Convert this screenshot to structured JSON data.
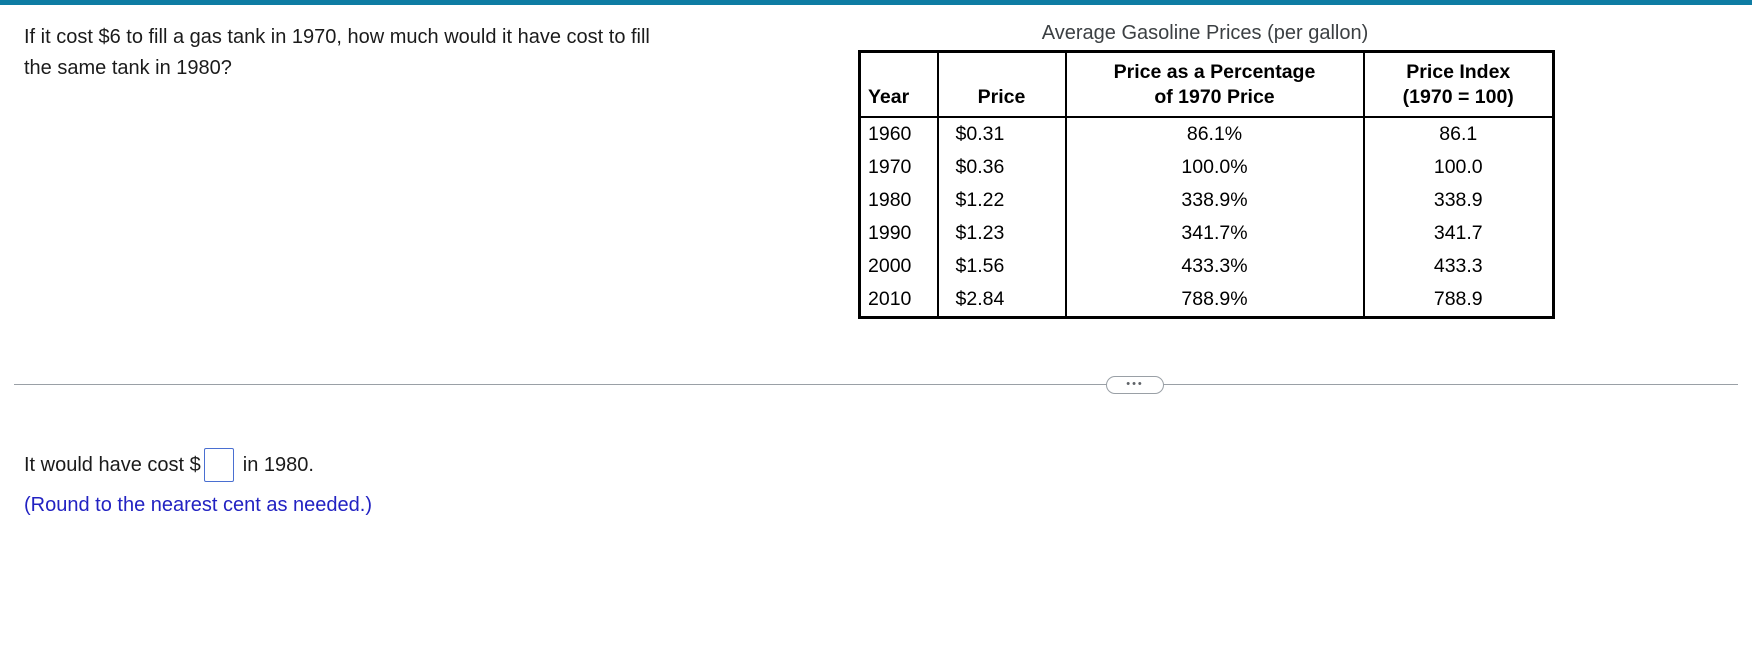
{
  "accent": {
    "top_bar_color": "#0e7ca3",
    "hint_text_color": "#2222c2",
    "input_border_color": "#4a6fd1"
  },
  "question": {
    "text": "If it cost $6 to fill a gas tank in 1970, how much would it have cost to fill\nthe same tank in 1980?"
  },
  "table": {
    "title": "Average Gasoline Prices (per gallon)",
    "headers": [
      "Year",
      "Price",
      "Price as a Percentage\nof 1970 Price",
      "Price Index\n(1970 = 100)"
    ],
    "rows": [
      [
        "1960",
        "$0.31",
        "86.1%",
        "86.1"
      ],
      [
        "1970",
        "$0.36",
        "100.0%",
        "100.0"
      ],
      [
        "1980",
        "$1.22",
        "338.9%",
        "338.9"
      ],
      [
        "1990",
        "$1.23",
        "341.7%",
        "341.7"
      ],
      [
        "2000",
        "$1.56",
        "433.3%",
        "433.3"
      ],
      [
        "2010",
        "$2.84",
        "788.9%",
        "788.9"
      ]
    ]
  },
  "divider": {
    "ellipsis_icon": "•••"
  },
  "answer": {
    "prefix": "It would have cost $",
    "suffix": "in 1980.",
    "input_value": "",
    "instruction": "(Round to the nearest cent as needed.)"
  }
}
